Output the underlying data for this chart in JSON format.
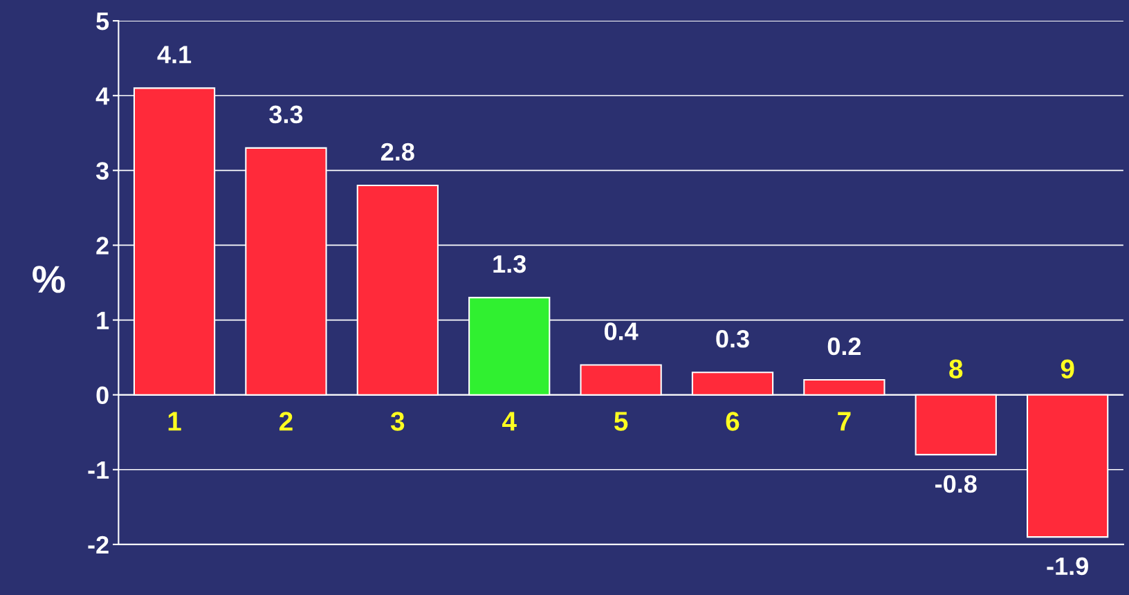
{
  "chart_data": {
    "type": "bar",
    "ylabel": "%",
    "categories": [
      "1",
      "2",
      "3",
      "4",
      "5",
      "6",
      "7",
      "8",
      "9"
    ],
    "values": [
      4.1,
      3.3,
      2.8,
      1.3,
      0.4,
      0.3,
      0.2,
      -0.8,
      -1.9
    ],
    "colors": [
      "#ff2a3a",
      "#ff2a3a",
      "#ff2a3a",
      "#30f030",
      "#ff2a3a",
      "#ff2a3a",
      "#ff2a3a",
      "#ff2a3a",
      "#ff2a3a"
    ],
    "ylim": [
      -2,
      5
    ],
    "yticks": [
      -2,
      -1,
      0,
      1,
      2,
      3,
      4,
      5
    ],
    "grid": "y",
    "data_labels": true
  }
}
